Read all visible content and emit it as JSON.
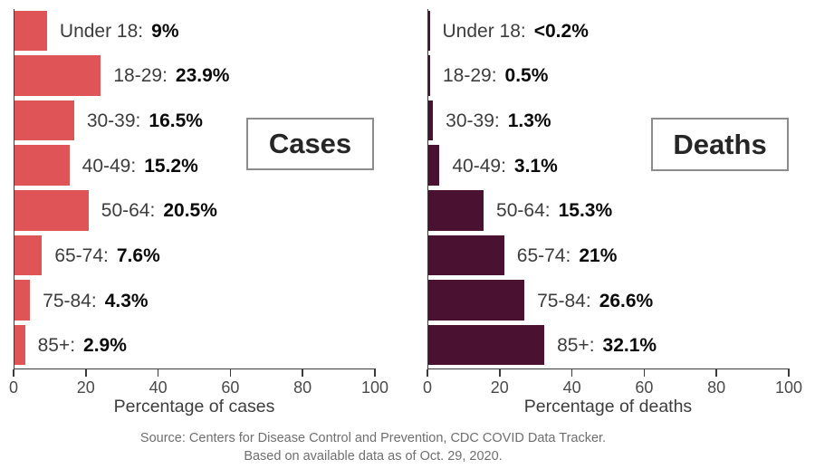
{
  "page": {
    "background": "#ffffff",
    "axis_color": "#3a3a3a"
  },
  "chart_data": [
    {
      "type": "bar",
      "orientation": "horizontal",
      "title": "Cases",
      "xlabel": "Percentage of cases",
      "categories": [
        "Under 18",
        "18-29",
        "30-39",
        "40-49",
        "50-64",
        "65-74",
        "75-84",
        "85+"
      ],
      "values": [
        9,
        23.9,
        16.5,
        15.2,
        20.5,
        7.6,
        4.3,
        2.9
      ],
      "value_labels": [
        "9%",
        "23.9%",
        "16.5%",
        "15.2%",
        "20.5%",
        "7.6%",
        "4.3%",
        "2.9%"
      ],
      "bar_color": "#df5456",
      "xlim": [
        0,
        100
      ],
      "xticks": [
        0,
        20,
        40,
        60,
        80,
        100
      ],
      "grid": false,
      "legend": "none"
    },
    {
      "type": "bar",
      "orientation": "horizontal",
      "title": "Deaths",
      "xlabel": "Percentage of deaths",
      "categories": [
        "Under 18",
        "18-29",
        "30-39",
        "40-49",
        "50-64",
        "65-74",
        "75-84",
        "85+"
      ],
      "values": [
        0.2,
        0.5,
        1.3,
        3.1,
        15.3,
        21,
        26.6,
        32.1
      ],
      "value_labels": [
        "<0.2%",
        "0.5%",
        "1.3%",
        "3.1%",
        "15.3%",
        "21%",
        "26.6%",
        "32.1%"
      ],
      "bar_color": "#4a1130",
      "xlim": [
        0,
        100
      ],
      "xticks": [
        0,
        20,
        40,
        60,
        80,
        100
      ],
      "grid": false,
      "legend": "none"
    }
  ],
  "source": {
    "line1": "Source: Centers for Disease Control and Prevention, CDC COVID Data Tracker.",
    "line2": "Based on available data as of Oct. 29, 2020."
  }
}
